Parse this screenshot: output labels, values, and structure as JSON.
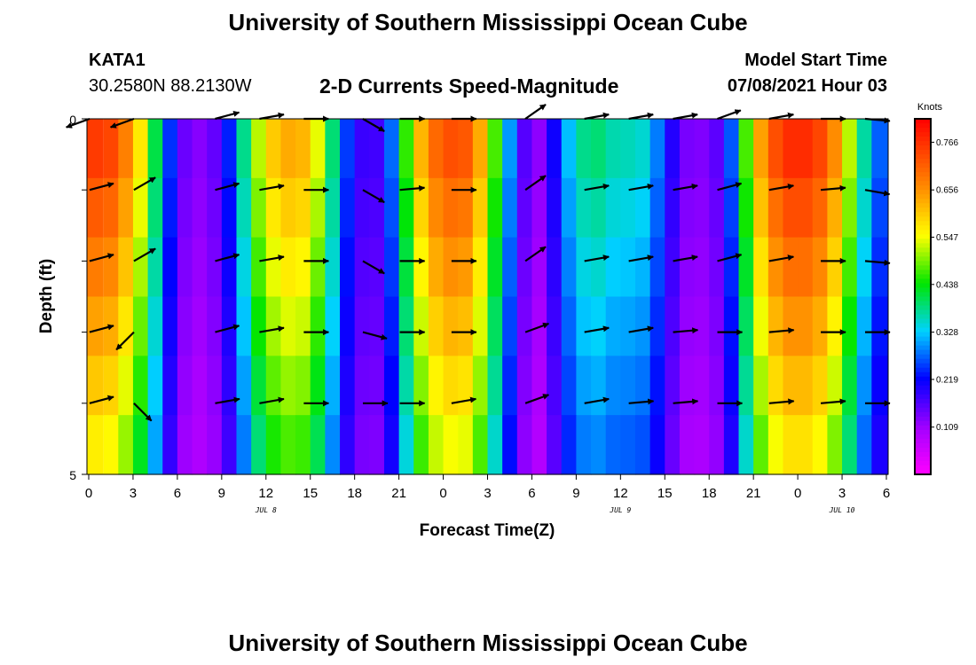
{
  "header": {
    "title": "University of Southern Mississippi Ocean Cube",
    "station_id": "KATA1",
    "coordinates": "30.2580N  88.2130W",
    "product": "2-D Currents Speed-Magnitude",
    "model_start_label": "Model Start Time",
    "model_start_value": "07/08/2021 Hour 03"
  },
  "footer": {
    "title": "University of Southern Mississippi Ocean Cube"
  },
  "chart_data": {
    "type": "heatmap",
    "title": "2-D Currents Speed-Magnitude",
    "xlabel": "Forecast Time(Z)",
    "ylabel": "Depth (ft)",
    "x_ticks": [
      "0",
      "3",
      "6",
      "9",
      "12",
      "15",
      "18",
      "21",
      "0",
      "3",
      "6",
      "9",
      "12",
      "15",
      "18",
      "21",
      "0",
      "3",
      "6"
    ],
    "x_range_hours": [
      0,
      54
    ],
    "y_range_ft": [
      0,
      5
    ],
    "y_tick_labels": [
      "0",
      "5"
    ],
    "date_labels": [
      {
        "text": "JUL 8",
        "hour": 12
      },
      {
        "text": "JUL 9",
        "hour": 36
      },
      {
        "text": "JUL 10",
        "hour": 51
      }
    ],
    "colorbar": {
      "unit": "Knots",
      "min": 0.0,
      "max": 0.82,
      "ticks": [
        "0.766",
        "0.656",
        "0.547",
        "0.438",
        "0.328",
        "0.219",
        "0.109"
      ],
      "tick_values": [
        0.766,
        0.656,
        0.547,
        0.438,
        0.328,
        0.219,
        0.109
      ]
    },
    "depth_layers_ft": [
      0,
      1,
      2,
      3,
      4,
      5
    ],
    "speed_profile_knots": [
      [
        0,
        0.76
      ],
      [
        1.5,
        0.74
      ],
      [
        3,
        0.64
      ],
      [
        4,
        0.5
      ],
      [
        5,
        0.32
      ],
      [
        6,
        0.17
      ],
      [
        7,
        0.12
      ],
      [
        8,
        0.13
      ],
      [
        9,
        0.17
      ],
      [
        10,
        0.3
      ],
      [
        11,
        0.46
      ],
      [
        12,
        0.58
      ],
      [
        13,
        0.62
      ],
      [
        14,
        0.64
      ],
      [
        15,
        0.6
      ],
      [
        16,
        0.48
      ],
      [
        17,
        0.3
      ],
      [
        18,
        0.2
      ],
      [
        19,
        0.16
      ],
      [
        20,
        0.19
      ],
      [
        21,
        0.36
      ],
      [
        22,
        0.56
      ],
      [
        23,
        0.68
      ],
      [
        24,
        0.72
      ],
      [
        25,
        0.74
      ],
      [
        26,
        0.7
      ],
      [
        27,
        0.56
      ],
      [
        28,
        0.38
      ],
      [
        29,
        0.22
      ],
      [
        30,
        0.1
      ],
      [
        31,
        0.14
      ],
      [
        32,
        0.28
      ],
      [
        33,
        0.36
      ],
      [
        34,
        0.4
      ],
      [
        35,
        0.38
      ],
      [
        36,
        0.35
      ],
      [
        37,
        0.37
      ],
      [
        38,
        0.33
      ],
      [
        39,
        0.24
      ],
      [
        40,
        0.15
      ],
      [
        41,
        0.12
      ],
      [
        42,
        0.14
      ],
      [
        43,
        0.17
      ],
      [
        44,
        0.36
      ],
      [
        45,
        0.58
      ],
      [
        46,
        0.7
      ],
      [
        47,
        0.76
      ],
      [
        48,
        0.78
      ],
      [
        49,
        0.76
      ],
      [
        50,
        0.72
      ],
      [
        51,
        0.6
      ],
      [
        52,
        0.44
      ],
      [
        53,
        0.3
      ],
      [
        54,
        0.24
      ]
    ],
    "vector_columns_hours": [
      1.5,
      4.5,
      10,
      13,
      16,
      20,
      22.5,
      26,
      31,
      35,
      38,
      41,
      44,
      47.5,
      51,
      54
    ],
    "vector_direction_deg": [
      [
        200,
        200,
        15,
        10,
        0,
        330,
        0,
        0,
        35,
        10,
        10,
        10,
        20,
        10,
        0,
        355
      ],
      [
        15,
        30,
        15,
        10,
        0,
        330,
        5,
        0,
        35,
        10,
        10,
        10,
        15,
        10,
        5,
        350
      ],
      [
        15,
        30,
        15,
        10,
        0,
        330,
        0,
        0,
        35,
        10,
        10,
        10,
        15,
        10,
        0,
        355
      ],
      [
        15,
        225,
        15,
        10,
        0,
        345,
        0,
        0,
        20,
        10,
        10,
        5,
        0,
        5,
        0,
        0
      ],
      [
        15,
        315,
        10,
        10,
        0,
        0,
        0,
        10,
        20,
        10,
        5,
        5,
        0,
        5,
        5,
        0
      ]
    ]
  }
}
